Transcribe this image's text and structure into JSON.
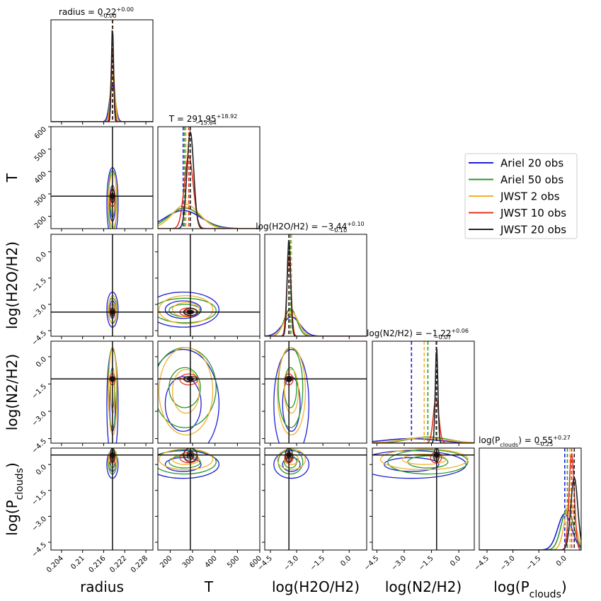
{
  "chart_data": {
    "type": "corner",
    "legend": "right",
    "series": [
      {
        "name": "Ariel 20 obs",
        "color": "#1f1fd6"
      },
      {
        "name": "Ariel 50 obs",
        "color": "#2a9a2a"
      },
      {
        "name": "JWST 2 obs",
        "color": "#f4b02e"
      },
      {
        "name": "JWST 10 obs",
        "color": "#e8321e"
      },
      {
        "name": "JWST 20 obs",
        "color": "#222222"
      }
    ],
    "params": [
      {
        "label": "radius",
        "title": {
          "main": "radius = 0.22",
          "upper": "+0.00",
          "lower": "−0.00"
        },
        "truth": 0.2185,
        "lim": [
          0.201,
          0.23
        ],
        "ticks": [
          0.204,
          0.21,
          0.216,
          0.222,
          0.228
        ],
        "medians": [
          0.2185,
          0.2185,
          0.2186,
          0.2185,
          0.2185
        ],
        "sigmas": [
          0.0008,
          0.0006,
          0.0006,
          0.0004,
          0.0003
        ]
      },
      {
        "label": "T",
        "title": {
          "main": "T = 291.95",
          "upper": "+18.92",
          "lower": "−15.64"
        },
        "truth": 290,
        "lim": [
          145,
          600
        ],
        "ticks": [
          200,
          300,
          400,
          500,
          600
        ],
        "medians": [
          258,
          265,
          270,
          283,
          290
        ],
        "sigmas": [
          80,
          70,
          60,
          20,
          15
        ]
      },
      {
        "label": "log(H2O/H2)",
        "title": {
          "main": "log(H2O/H2) = −3.44",
          "upper": "+0.10",
          "lower": "−0.10"
        },
        "truth": -3.44,
        "lim": [
          -4.82,
          1.0
        ],
        "ticks": [
          {
            "value": -4.5,
            "label": "−4.5"
          },
          {
            "value": -3.0,
            "label": "−3.0"
          },
          {
            "value": -1.5,
            "label": "−1.5"
          },
          {
            "value": 0,
            "label": "0.0"
          }
        ],
        "medians": [
          -3.3,
          -3.35,
          -3.3,
          -3.44,
          -3.44
        ],
        "sigmas": [
          0.5,
          0.35,
          0.4,
          0.12,
          0.1
        ]
      },
      {
        "label": "log(N2/H2)",
        "title": {
          "main": "log(N2/H2) = −1.22",
          "upper": "+0.06",
          "lower": "−0.07"
        },
        "truth": -1.22,
        "lim": [
          -4.75,
          0.85
        ],
        "ticks": [
          {
            "value": -4.5,
            "label": "−4.5"
          },
          {
            "value": -3.0,
            "label": "−3.0"
          },
          {
            "value": -1.5,
            "label": "−1.5"
          },
          {
            "value": 0,
            "label": "0.0"
          }
        ],
        "medians": [
          -2.6,
          -1.7,
          -1.9,
          -1.25,
          -1.22
        ],
        "sigmas": [
          1.5,
          1.1,
          1.2,
          0.15,
          0.07
        ]
      },
      {
        "label": "log(P",
        "label_sub": "clouds",
        "label_end": ")",
        "title": {
          "main": "log(P",
          "sub": "clouds",
          "rest": ") = 0.55",
          "upper": "+0.27",
          "lower": "−0.25"
        },
        "truth": 0.55,
        "lim": [
          -4.95,
          0.95
        ],
        "ticks": [
          {
            "value": -4.5,
            "label": "−4.5"
          },
          {
            "value": -3.0,
            "label": "−3.0"
          },
          {
            "value": -1.5,
            "label": "−1.5"
          },
          {
            "value": 0,
            "label": "0.0"
          }
        ],
        "medians": [
          0.0,
          0.15,
          0.3,
          0.4,
          0.55
        ],
        "sigmas": [
          0.4,
          0.35,
          0.3,
          0.15,
          0.2
        ]
      }
    ]
  }
}
